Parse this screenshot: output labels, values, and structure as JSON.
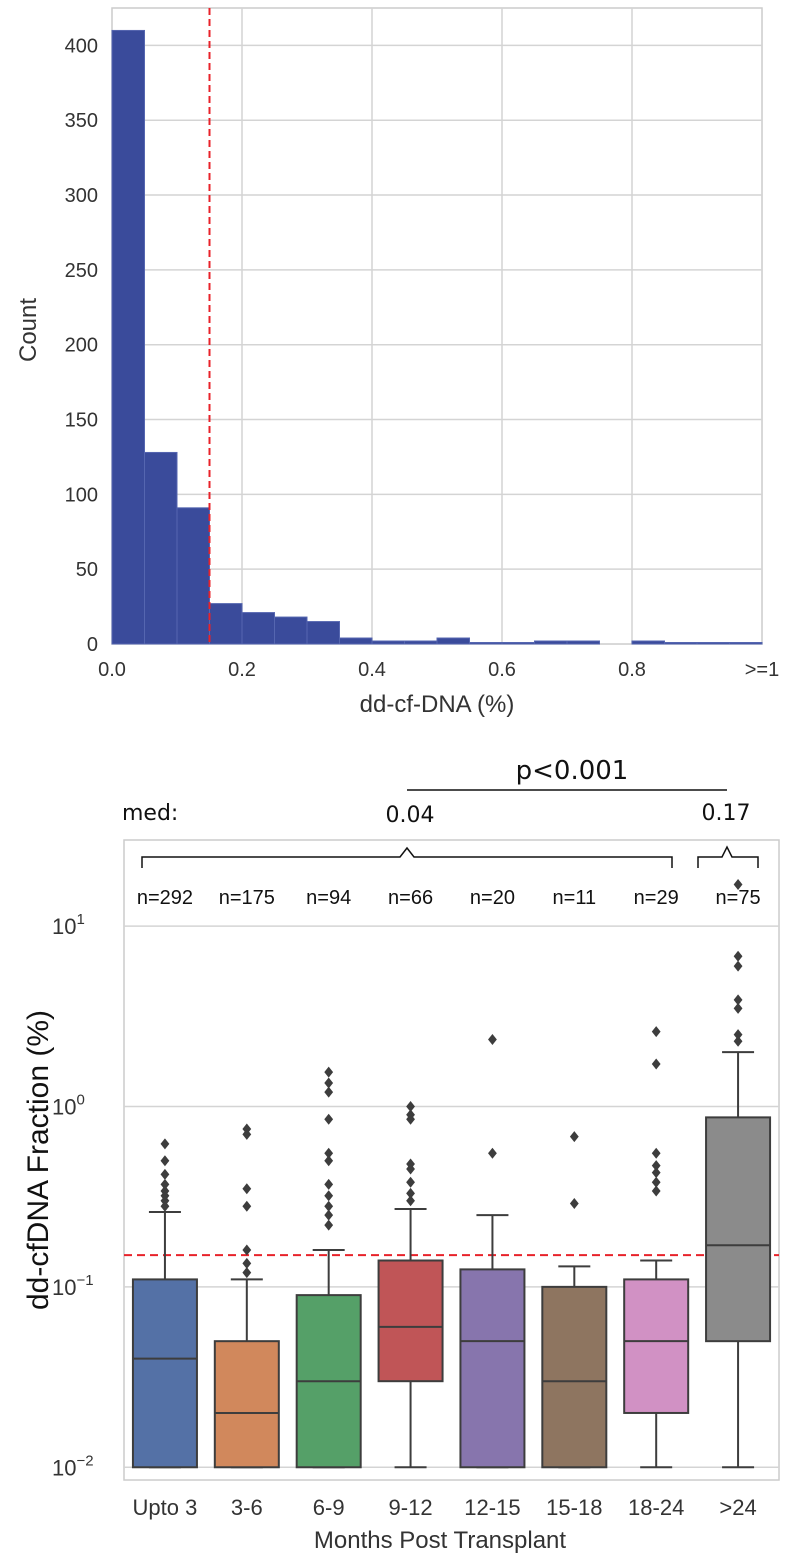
{
  "chart_data": [
    {
      "type": "bar",
      "subtype": "histogram",
      "xlabel": "dd-cf-DNA (%)",
      "ylabel": "Count",
      "xlim": [
        0,
        1
      ],
      "ylim": [
        0,
        425
      ],
      "x_ticks": [
        0.0,
        0.2,
        0.4,
        0.6,
        0.8,
        1.0
      ],
      "x_tick_labels": [
        "0.0",
        "0.2",
        "0.4",
        "0.6",
        "0.8",
        ">=1"
      ],
      "y_ticks": [
        0,
        50,
        100,
        150,
        200,
        250,
        300,
        350,
        400
      ],
      "y_tick_labels": [
        "0",
        "50",
        "100",
        "150",
        "200",
        "250",
        "300",
        "350",
        "400"
      ],
      "bin_edges": [
        0.0,
        0.05,
        0.1,
        0.15,
        0.2,
        0.25,
        0.3,
        0.35,
        0.4,
        0.45,
        0.5,
        0.55,
        0.6,
        0.65,
        0.7,
        0.75,
        0.8,
        0.85,
        0.9,
        0.95,
        1.0
      ],
      "values": [
        410,
        128,
        91,
        27,
        21,
        18,
        15,
        4,
        2,
        2,
        4,
        1,
        1,
        2,
        2,
        0,
        2,
        1,
        1,
        1
      ],
      "threshold_line": 0.15,
      "bar_color": "#3a4b9b",
      "threshold_color": "#e8222a",
      "grid": true
    },
    {
      "type": "box",
      "xlabel": "Months Post Transplant",
      "ylabel": "dd-cfDNA Fraction (%)",
      "y_scale": "log",
      "ylim": [
        0.0085,
        30
      ],
      "y_ticks": [
        0.01,
        0.1,
        1,
        10
      ],
      "y_tick_base": "10",
      "y_tick_exponents": [
        "−2",
        "−1",
        "0",
        "1"
      ],
      "categories": [
        "Upto 3",
        "3-6",
        "6-9",
        "9-12",
        "12-15",
        "15-18",
        "18-24",
        ">24"
      ],
      "n_labels": [
        "n=292",
        "n=175",
        "n=94",
        "n=66",
        "n=20",
        "n=11",
        "n=29",
        "n=75"
      ],
      "threshold_line": 0.15,
      "threshold_color": "#e8222a",
      "grid": true,
      "boxes": [
        {
          "min": 0.01,
          "q1": 0.01,
          "median": 0.04,
          "q3": 0.11,
          "max": 0.26,
          "color": "#5471a6",
          "outliers": [
            0.28,
            0.3,
            0.32,
            0.34,
            0.37,
            0.42,
            0.5,
            0.62
          ]
        },
        {
          "min": 0.01,
          "q1": 0.01,
          "median": 0.02,
          "q3": 0.05,
          "max": 0.11,
          "color": "#d1885c",
          "outliers": [
            0.12,
            0.135,
            0.16,
            0.28,
            0.35,
            0.7,
            0.75
          ]
        },
        {
          "min": 0.01,
          "q1": 0.01,
          "median": 0.03,
          "q3": 0.09,
          "max": 0.16,
          "color": "#55a068",
          "outliers": [
            0.22,
            0.25,
            0.28,
            0.32,
            0.37,
            0.5,
            0.55,
            0.85,
            1.2,
            1.35,
            1.55
          ]
        },
        {
          "min": 0.01,
          "q1": 0.03,
          "median": 0.06,
          "q3": 0.14,
          "max": 0.27,
          "color": "#c05557",
          "outliers": [
            0.3,
            0.33,
            0.38,
            0.45,
            0.48,
            0.85,
            0.9,
            1.0
          ]
        },
        {
          "min": 0.01,
          "q1": 0.01,
          "median": 0.05,
          "q3": 0.125,
          "max": 0.25,
          "color": "#8775ad",
          "outliers": [
            0.55,
            2.35
          ]
        },
        {
          "min": 0.01,
          "q1": 0.01,
          "median": 0.03,
          "q3": 0.1,
          "max": 0.13,
          "color": "#8e7560",
          "outliers": [
            0.29,
            0.68
          ]
        },
        {
          "min": 0.01,
          "q1": 0.02,
          "median": 0.05,
          "q3": 0.11,
          "max": 0.14,
          "color": "#d191c4",
          "outliers": [
            0.34,
            0.38,
            0.43,
            0.47,
            0.55,
            1.72,
            2.6
          ]
        },
        {
          "min": 0.01,
          "q1": 0.05,
          "median": 0.17,
          "q3": 0.87,
          "max": 2.0,
          "color": "#8b8b8b",
          "outliers": [
            2.3,
            2.5,
            3.5,
            3.9,
            6.0,
            6.8,
            17.0
          ]
        }
      ],
      "annotations": {
        "med_label": "med:",
        "med_group1": "0.04",
        "med_group2": "0.17",
        "pvalue": "p<0.001"
      }
    }
  ]
}
